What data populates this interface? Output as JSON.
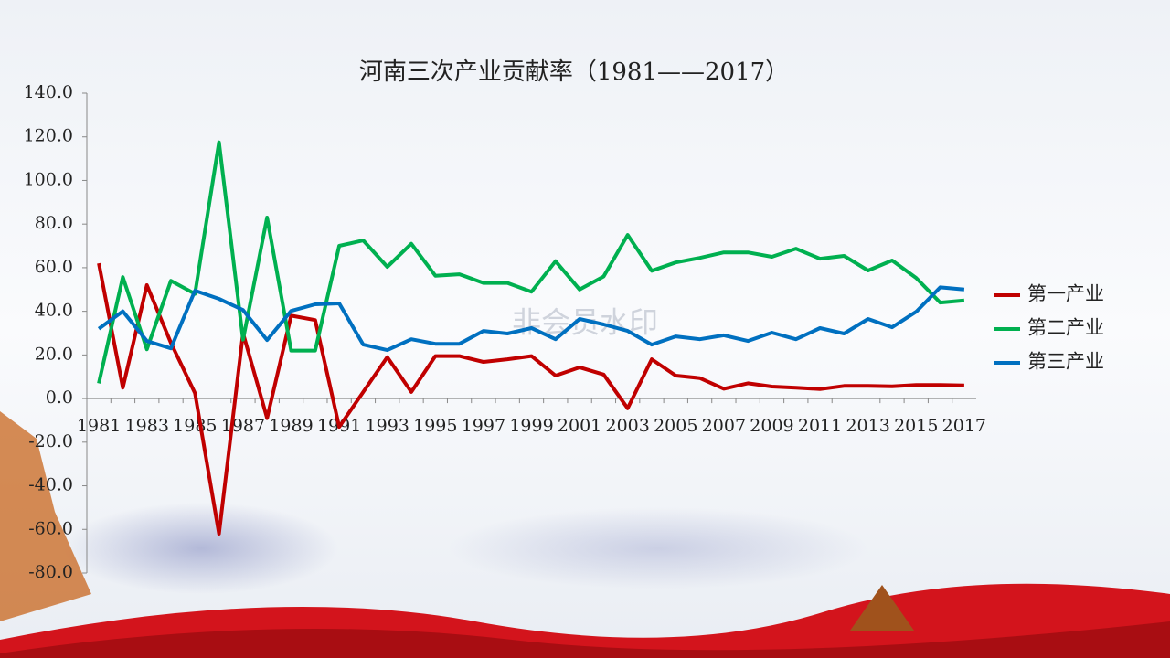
{
  "chart_data": {
    "type": "line",
    "title": "河南三次产业贡献率（1981——2017）",
    "watermark": "非会员水印",
    "categories": [
      "1981",
      null,
      "1983",
      null,
      "1985",
      null,
      "1987",
      null,
      "1989",
      null,
      "1991",
      null,
      "1993",
      null,
      "1995",
      null,
      "1997",
      null,
      "1999",
      null,
      "2001",
      null,
      "2003",
      null,
      "2005",
      null,
      "2007",
      null,
      "2009",
      null,
      "2011",
      null,
      "2013",
      null,
      "2015",
      null,
      "2017"
    ],
    "series": [
      {
        "name": "第一产业",
        "color": "#c00000",
        "values": [
          62,
          5,
          52,
          25.5,
          2.5,
          -62,
          30,
          -9,
          38,
          36,
          -13,
          3,
          19,
          3,
          19.5,
          19.5,
          16.8,
          18,
          19.5,
          10.5,
          14.3,
          11,
          -4.5,
          18,
          10.5,
          9.4,
          4.5,
          7,
          5.5,
          5,
          4.3,
          5.8,
          5.8,
          5.6,
          6.2,
          6.2,
          6
        ]
      },
      {
        "name": "第二产业",
        "color": "#00b050",
        "values": [
          7,
          55.7,
          22.6,
          54,
          48,
          117.5,
          27,
          83,
          22,
          22,
          70,
          72.5,
          60.4,
          71,
          56.3,
          57,
          53,
          53,
          49,
          63,
          50,
          56,
          75,
          58.6,
          62.4,
          64.5,
          67,
          67,
          65,
          68.7,
          64.1,
          65.4,
          58.7,
          63.3,
          55.3,
          44,
          45
        ]
      },
      {
        "name": "第三产业",
        "color": "#0070c0",
        "values": [
          32,
          40,
          26.4,
          23,
          49.5,
          45.7,
          40.6,
          26.8,
          40.2,
          43.2,
          43.6,
          24.7,
          22.2,
          27.2,
          25.1,
          25.1,
          31,
          29.8,
          32.3,
          27.2,
          36.5,
          34,
          31,
          24.7,
          28.5,
          27.2,
          29,
          26.4,
          30.2,
          27.2,
          32.3,
          29.8,
          36.5,
          32.7,
          39.8,
          51,
          50
        ]
      }
    ],
    "ylim": [
      -80,
      140
    ],
    "yticks": [
      {
        "value": -80,
        "label": "-80.0"
      },
      {
        "value": -60,
        "label": "-60.0"
      },
      {
        "value": -40,
        "label": "-40.0"
      },
      {
        "value": -20,
        "label": "-20.0"
      },
      {
        "value": 0,
        "label": "0.0"
      },
      {
        "value": 20,
        "label": "20.0"
      },
      {
        "value": 40,
        "label": "40.0"
      },
      {
        "value": 60,
        "label": "60.0"
      },
      {
        "value": 80,
        "label": "80.0"
      },
      {
        "value": 100,
        "label": "100.0"
      },
      {
        "value": 120,
        "label": "120.0"
      },
      {
        "value": 140,
        "label": "140.0"
      }
    ],
    "grid": false,
    "legend": "right"
  }
}
